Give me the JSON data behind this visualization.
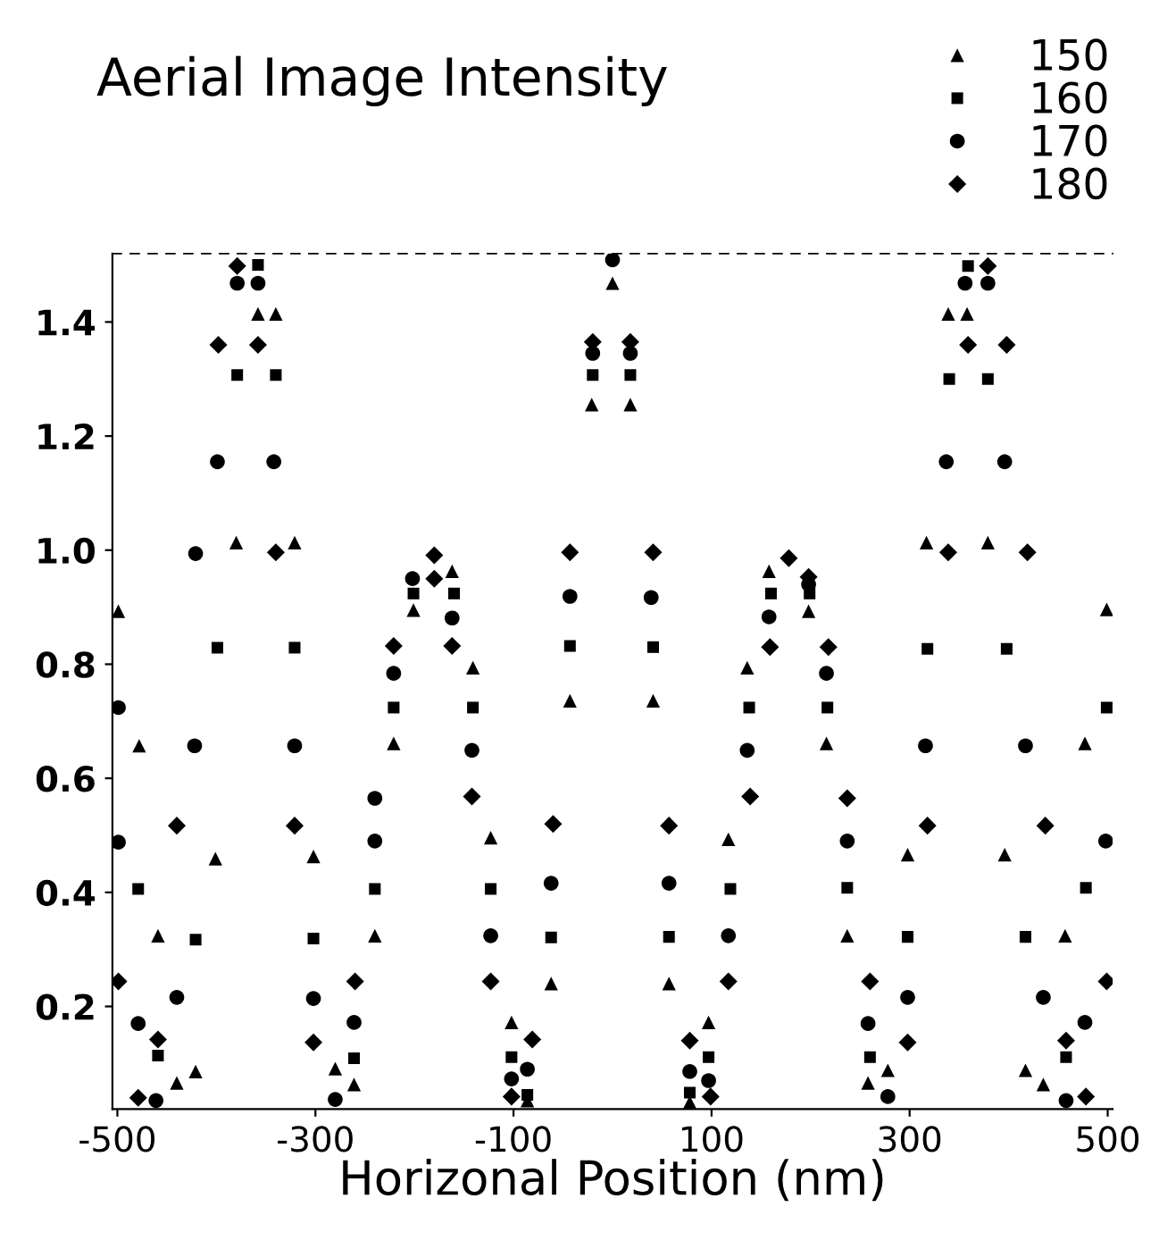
{
  "chart_data": {
    "type": "scatter",
    "title": "Aerial Image Intensity",
    "xlabel": "Horizonal Position (nm)",
    "xlim": [
      -505,
      505
    ],
    "xticks": [
      -500,
      -300,
      -100,
      100,
      300,
      500
    ],
    "ylim": [
      0.02,
      1.52
    ],
    "yticks": [
      0.2,
      0.4,
      0.6,
      0.8,
      {
        "value": 1.0,
        "label": "1.0"
      },
      1.2,
      1.4
    ],
    "grid": false,
    "legend": "top right",
    "series": [
      {
        "name": "150",
        "color": "#000000",
        "marker": "triangle",
        "x": [
          -499,
          -478,
          -459,
          -440,
          -421,
          -401,
          -380,
          -358,
          -340,
          -321,
          -302,
          -280,
          -261,
          -240,
          -221,
          -201,
          -162,
          -141,
          -123,
          -102,
          -86,
          -62,
          -43,
          -21,
          0,
          18,
          41,
          57,
          78,
          97,
          117,
          136,
          158,
          198,
          216,
          237,
          258,
          278,
          298,
          317,
          339,
          358,
          379,
          396,
          417,
          435,
          457,
          477,
          499
        ],
        "values": [
          0.893,
          0.657,
          0.324,
          0.066,
          0.086,
          0.459,
          1.013,
          1.414,
          1.414,
          1.013,
          0.463,
          0.091,
          0.063,
          0.324,
          0.661,
          0.895,
          0.963,
          0.794,
          0.496,
          0.172,
          0.035,
          0.24,
          0.736,
          1.255,
          1.468,
          1.255,
          0.736,
          0.24,
          0.032,
          0.172,
          0.493,
          0.794,
          0.963,
          0.893,
          0.661,
          0.324,
          0.066,
          0.088,
          0.466,
          1.013,
          1.414,
          1.414,
          1.013,
          0.466,
          0.088,
          0.063,
          0.324,
          0.661,
          0.896
        ]
      },
      {
        "name": "160",
        "color": "#000000",
        "marker": "square",
        "x": [
          -479,
          -459,
          -421,
          -399,
          -379,
          -358,
          -340,
          -321,
          -302,
          -261,
          -240,
          -221,
          -201,
          -160,
          -141,
          -123,
          -102,
          -86,
          -62,
          -43,
          -20,
          18,
          41,
          57,
          78,
          97,
          119,
          138,
          160,
          199,
          217,
          237,
          260,
          298,
          318,
          340,
          359,
          379,
          398,
          417,
          458,
          478,
          499
        ],
        "values": [
          0.406,
          0.114,
          0.317,
          0.829,
          1.307,
          1.5,
          1.307,
          0.829,
          0.319,
          0.109,
          0.406,
          0.724,
          0.924,
          0.924,
          0.724,
          0.406,
          0.111,
          0.045,
          0.321,
          0.832,
          1.307,
          1.307,
          0.83,
          0.322,
          0.049,
          0.111,
          0.406,
          0.724,
          0.924,
          0.924,
          0.724,
          0.408,
          0.111,
          0.322,
          0.827,
          1.3,
          1.498,
          1.3,
          0.827,
          0.322,
          0.111,
          0.408,
          0.724
        ]
      },
      {
        "name": "170",
        "color": "#000000",
        "marker": "circle",
        "x": [
          -499,
          -499,
          -479,
          -461,
          -440,
          -422,
          -421,
          -399,
          -379,
          -358,
          -342,
          -321,
          -302,
          -280,
          -261,
          -240,
          -240,
          -221,
          -202,
          -162,
          -142,
          -123,
          -102,
          -86,
          -62,
          -43,
          -20,
          0,
          18,
          39,
          57,
          78,
          97,
          117,
          136,
          158,
          198,
          216,
          237,
          258,
          278,
          298,
          316,
          337,
          356,
          379,
          396,
          417,
          435,
          458,
          477,
          498
        ],
        "values": [
          0.724,
          0.488,
          0.17,
          0.035,
          0.216,
          0.657,
          0.994,
          1.155,
          1.468,
          1.468,
          1.155,
          0.657,
          0.214,
          0.037,
          0.172,
          0.565,
          0.49,
          0.784,
          0.95,
          0.881,
          0.649,
          0.324,
          0.073,
          0.09,
          0.416,
          0.919,
          1.345,
          1.509,
          1.345,
          0.917,
          0.416,
          0.086,
          0.07,
          0.324,
          0.649,
          0.883,
          0.94,
          0.784,
          0.49,
          0.17,
          0.042,
          0.216,
          0.657,
          1.155,
          1.468,
          1.468,
          1.155,
          0.657,
          0.216,
          0.035,
          0.172,
          0.49
        ]
      },
      {
        "name": "180",
        "color": "#000000",
        "marker": "diamond",
        "x": [
          -499,
          -479,
          -459,
          -440,
          -398,
          -379,
          -358,
          -340,
          -321,
          -302,
          -260,
          -221,
          -180,
          -180,
          -162,
          -142,
          -123,
          -102,
          -81,
          -60,
          -43,
          -20,
          18,
          41,
          57,
          78,
          99,
          117,
          139,
          159,
          178,
          198,
          218,
          237,
          260,
          298,
          318,
          339,
          359,
          379,
          398,
          419,
          437,
          458,
          478,
          499
        ],
        "values": [
          0.244,
          0.04,
          0.142,
          0.517,
          1.36,
          1.498,
          1.36,
          0.996,
          0.517,
          0.137,
          0.244,
          0.832,
          0.991,
          0.95,
          0.832,
          0.568,
          0.244,
          0.042,
          0.142,
          0.52,
          0.996,
          1.365,
          1.365,
          0.996,
          0.517,
          0.14,
          0.042,
          0.244,
          0.568,
          0.83,
          0.986,
          0.953,
          0.83,
          0.565,
          0.244,
          0.137,
          0.517,
          0.996,
          1.36,
          1.498,
          1.36,
          0.996,
          0.517,
          0.14,
          0.042,
          0.244
        ]
      }
    ]
  }
}
